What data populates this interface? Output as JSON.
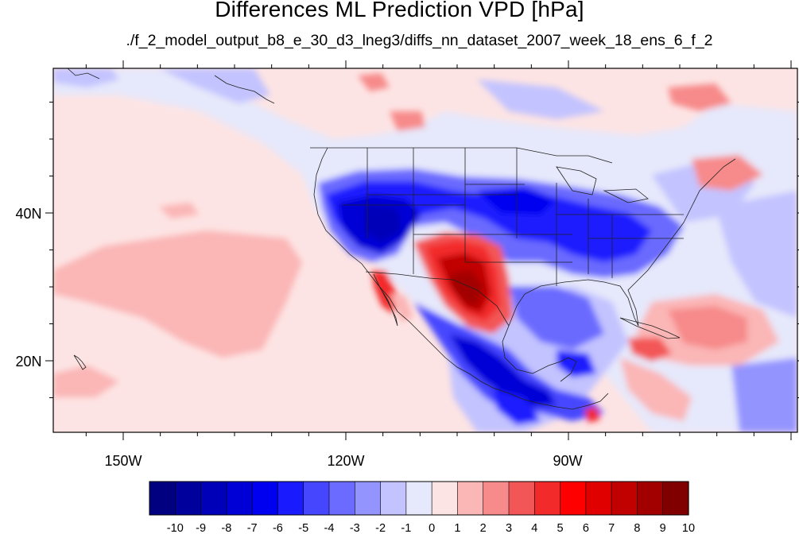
{
  "title": "Differences ML Prediction VPD [hPa]",
  "subtitle": "./f_2_model_output_b8_e_30_d3_lneg3/diffs_nn_dataset_2007_week_18_ens_6_f_2",
  "axes": {
    "lon_labels": [
      "150W",
      "120W",
      "90W"
    ],
    "lat_labels": [
      "40N",
      "20N"
    ]
  },
  "colorbar": {
    "tick_labels": [
      "-10",
      "-9",
      "-8",
      "-7",
      "-6",
      "-5",
      "-4",
      "-3",
      "-2",
      "-1",
      "0",
      "1",
      "2",
      "3",
      "4",
      "5",
      "6",
      "7",
      "8",
      "9",
      "10"
    ],
    "colors": [
      "#000080",
      "#00009d",
      "#0000b8",
      "#0000d6",
      "#0000f0",
      "#1a1aff",
      "#4646ff",
      "#6b6bff",
      "#9494ff",
      "#c3c3ff",
      "#e6e8fb",
      "#fde4e4",
      "#fbb6b6",
      "#f78a8a",
      "#f35656",
      "#f22a2a",
      "#ff0000",
      "#e00000",
      "#c10000",
      "#a20000",
      "#800000"
    ]
  },
  "colors": {
    "ocean_background": "#fde4e4",
    "strong_negative": "#0000f0",
    "strong_positive": "#a20000"
  }
}
